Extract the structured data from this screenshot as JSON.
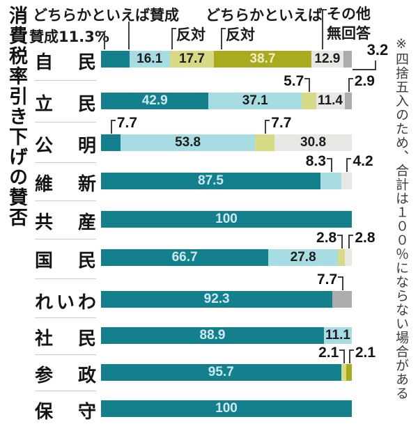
{
  "title": "消費税率引き下げの賛否",
  "note": "※四捨五入のため、合計は１００％にならない場合がある",
  "legend": {
    "sansei": "賛成11.3%",
    "yaya_sansei": "どちらかといえば賛成",
    "yaya_hantai_line1": "どちらかといえば",
    "yaya_hantai_line2": "反対",
    "hantai": "反対",
    "sonota_line1": "その他",
    "sonota_line2": "無回答"
  },
  "colors": {
    "sansei": "#15808d",
    "yaya_sansei": "#a7dce2",
    "yaya_hantai": "#d6d985",
    "hantai": "#a8aa1f",
    "sonota": "#e7e7e4",
    "mukaito": "#acacac",
    "text_on_teal": "#cfeaee",
    "text_on_olive": "#efefc6",
    "text_dark": "#1c1c1c",
    "leader_line": "#3d3d3d",
    "separator": "#c9c9c9"
  },
  "chart_data": {
    "type": "bar",
    "stacked": true,
    "orientation": "horizontal",
    "unit": "%",
    "xlim": [
      0,
      100
    ],
    "series_names": [
      "賛成",
      "どちらかといえば賛成",
      "どちらかといえば反対",
      "反対",
      "その他",
      "無回答"
    ],
    "series_colors": [
      "#15808d",
      "#a7dce2",
      "#d6d985",
      "#a8aa1f",
      "#e7e7e4",
      "#acacac"
    ],
    "categories": [
      "自民",
      "立民",
      "公明",
      "維新",
      "共産",
      "国民",
      "れいわ",
      "社民",
      "参政",
      "保守"
    ],
    "rows": [
      {
        "party": "自民",
        "segments": [
          {
            "s": 0,
            "v": 11.3,
            "lab": "legend"
          },
          {
            "s": 1,
            "v": 16.1,
            "lab": "in"
          },
          {
            "s": 2,
            "v": 17.7,
            "lab": "in"
          },
          {
            "s": 3,
            "v": 38.7,
            "lab": "in"
          },
          {
            "s": 4,
            "v": 12.9,
            "lab": "in"
          },
          {
            "s": 5,
            "v": 3.2,
            "lab": "L"
          }
        ]
      },
      {
        "party": "立民",
        "segments": [
          {
            "s": 0,
            "v": 42.9,
            "lab": "in"
          },
          {
            "s": 1,
            "v": 37.1,
            "lab": "in"
          },
          {
            "s": 2,
            "v": 5.7,
            "lab": "cl"
          },
          {
            "s": 4,
            "v": 11.4,
            "lab": "in"
          },
          {
            "s": 5,
            "v": 2.9,
            "lab": "cr"
          }
        ]
      },
      {
        "party": "公明",
        "segments": [
          {
            "s": 0,
            "v": 7.7,
            "lab": "cr"
          },
          {
            "s": 1,
            "v": 53.8,
            "lab": "in"
          },
          {
            "s": 2,
            "v": 7.7,
            "lab": "cr"
          },
          {
            "s": 4,
            "v": 30.8,
            "lab": "in"
          }
        ]
      },
      {
        "party": "維新",
        "segments": [
          {
            "s": 0,
            "v": 87.5,
            "lab": "in"
          },
          {
            "s": 1,
            "v": 8.3,
            "lab": "cl"
          },
          {
            "s": 4,
            "v": 4.2,
            "lab": "cr"
          }
        ]
      },
      {
        "party": "共産",
        "segments": [
          {
            "s": 0,
            "v": 100,
            "lab": "in"
          }
        ]
      },
      {
        "party": "国民",
        "segments": [
          {
            "s": 0,
            "v": 66.7,
            "lab": "in"
          },
          {
            "s": 1,
            "v": 27.8,
            "lab": "in"
          },
          {
            "s": 2,
            "v": 2.8,
            "lab": "cl"
          },
          {
            "s": 4,
            "v": 2.8,
            "lab": "cr"
          }
        ]
      },
      {
        "party": "れいわ",
        "segments": [
          {
            "s": 0,
            "v": 92.3,
            "lab": "in"
          },
          {
            "s": 5,
            "v": 7.7,
            "lab": "cl"
          }
        ]
      },
      {
        "party": "社民",
        "segments": [
          {
            "s": 0,
            "v": 88.9,
            "lab": "in"
          },
          {
            "s": 1,
            "v": 11.1,
            "lab": "in"
          }
        ]
      },
      {
        "party": "参政",
        "segments": [
          {
            "s": 0,
            "v": 95.7,
            "lab": "in"
          },
          {
            "s": 2,
            "v": 2.1,
            "lab": "cl"
          },
          {
            "s": 3,
            "v": 2.1,
            "lab": "cr"
          }
        ]
      },
      {
        "party": "保守",
        "segments": [
          {
            "s": 0,
            "v": 100,
            "lab": "in"
          }
        ]
      }
    ]
  }
}
